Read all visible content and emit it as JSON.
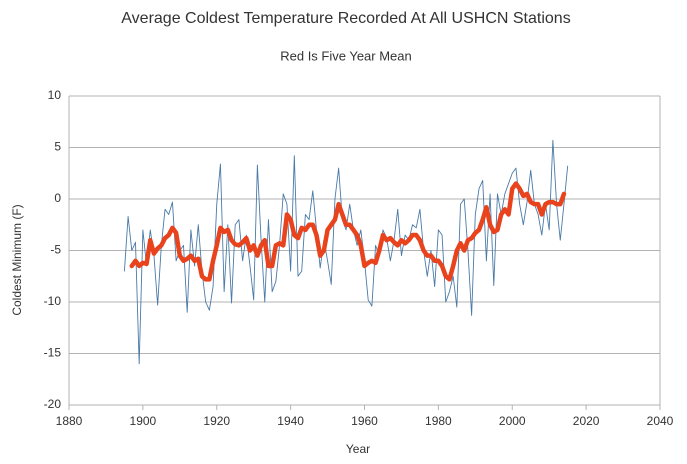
{
  "chart_data": {
    "type": "line",
    "title": "Average Coldest Temperature Recorded At All USHCN  Stations",
    "subtitle": "Red Is Five Year Mean",
    "x_label": "Year",
    "y_label": "Coldest Minimum (F)",
    "x": [
      1895,
      1896,
      1897,
      1898,
      1899,
      1900,
      1901,
      1902,
      1903,
      1904,
      1905,
      1906,
      1907,
      1908,
      1909,
      1910,
      1911,
      1912,
      1913,
      1914,
      1915,
      1916,
      1917,
      1918,
      1919,
      1920,
      1921,
      1922,
      1923,
      1924,
      1925,
      1926,
      1927,
      1928,
      1929,
      1930,
      1931,
      1932,
      1933,
      1934,
      1935,
      1936,
      1937,
      1938,
      1939,
      1940,
      1941,
      1942,
      1943,
      1944,
      1945,
      1946,
      1947,
      1948,
      1949,
      1950,
      1951,
      1952,
      1953,
      1954,
      1955,
      1956,
      1957,
      1958,
      1959,
      1960,
      1961,
      1962,
      1963,
      1964,
      1965,
      1966,
      1967,
      1968,
      1969,
      1970,
      1971,
      1972,
      1973,
      1974,
      1975,
      1976,
      1977,
      1978,
      1979,
      1980,
      1981,
      1982,
      1983,
      1984,
      1985,
      1986,
      1987,
      1988,
      1989,
      1990,
      1991,
      1992,
      1993,
      1994,
      1995,
      1996,
      1997,
      1998,
      1999,
      2000,
      2001,
      2002,
      2003,
      2004,
      2005,
      2006,
      2007,
      2008,
      2009,
      2010,
      2011,
      2012,
      2013,
      2014,
      2015
    ],
    "series": [
      {
        "color": "#4a7aa8",
        "width": 0.9,
        "values": [
          -7,
          -1.7,
          -5,
          -4.2,
          -16,
          -3,
          -6.5,
          -3,
          -5.5,
          -10.3,
          -4.5,
          -1,
          -1.5,
          -0.3,
          -6,
          -5,
          -4.5,
          -11,
          -3,
          -6.5,
          -2.5,
          -7,
          -10,
          -10.8,
          -8.5,
          -0.5,
          3.4,
          -9,
          -2.5,
          -10.1,
          -2.5,
          -2,
          -6,
          -3.5,
          -6.5,
          -9.8,
          3.3,
          -4,
          -10,
          -2,
          -9,
          -8,
          -4.5,
          0.5,
          -0.5,
          -7,
          4.2,
          -7.5,
          -7,
          -1.5,
          -2,
          0.8,
          -3,
          -6.7,
          -4,
          -6,
          -8.3,
          0,
          3,
          -2,
          -3,
          -0.5,
          -3,
          -4.5,
          -3,
          -6,
          -9.8,
          -10.4,
          -4.5,
          -5.5,
          -3,
          -3.8,
          -6,
          -4,
          -1,
          -5.5,
          -3.5,
          -4,
          -2.5,
          -2.8,
          -1,
          -5,
          -7.5,
          -5,
          -8.5,
          -3,
          -3.5,
          -10,
          -9,
          -7.5,
          -10.5,
          -0.5,
          0,
          -5,
          -11.3,
          -1.5,
          1,
          1.8,
          -6,
          0.5,
          -8.4,
          0.5,
          -1.5,
          0.5,
          1.5,
          2.5,
          3,
          -0.5,
          -2.5,
          -0.3,
          2.8,
          -0.5,
          -1.5,
          -3.5,
          -0.5,
          -3,
          5.7,
          -0.5,
          -4,
          -0.5,
          3.2
        ]
      },
      {
        "color": "#e8431c",
        "width": 4.5,
        "values": [
          null,
          null,
          -6.5,
          -6,
          -6.5,
          -6.2,
          -6.3,
          -4,
          -5.3,
          -4.8,
          -4.5,
          -3.8,
          -3.5,
          -2.8,
          -3.3,
          -5.5,
          -6,
          -5.8,
          -5.5,
          -6,
          -5.8,
          -7.5,
          -7.8,
          -7.8,
          -6,
          -4.5,
          -2.8,
          -3.2,
          -3,
          -4,
          -4.4,
          -4.5,
          -4.2,
          -3.8,
          -5,
          -4.5,
          -5.5,
          -4.5,
          -4,
          -6.5,
          -6.5,
          -4.5,
          -4.3,
          -4.5,
          -1.5,
          -2,
          -3.5,
          -3.8,
          -2.8,
          -3,
          -2.5,
          -2.5,
          -3.5,
          -5.5,
          -5,
          -3,
          -2.5,
          -2,
          -0.5,
          -1.5,
          -2.5,
          -2.5,
          -3,
          -3.5,
          -4.5,
          -6.5,
          -6.2,
          -6,
          -6.2,
          -5,
          -3.5,
          -4,
          -3.8,
          -4.2,
          -4.5,
          -4,
          -4.3,
          -4,
          -3.5,
          -3.5,
          -4,
          -5,
          -5.5,
          -5.5,
          -6,
          -6,
          -6.5,
          -7.5,
          -7.8,
          -6.5,
          -5,
          -4.3,
          -5,
          -4,
          -3.8,
          -3.3,
          -3,
          -2,
          -0.8,
          -2.5,
          -3.2,
          -3,
          -1.5,
          -1,
          -1.5,
          1,
          1.5,
          1,
          0.3,
          0.5,
          -0.3,
          -0.5,
          -0.5,
          -1.5,
          -0.5,
          -0.3,
          -0.3,
          -0.5,
          -0.5,
          0.5,
          null
        ]
      }
    ],
    "xlim": [
      1880,
      2040
    ],
    "xticks": [
      1880,
      1900,
      1920,
      1940,
      1960,
      1980,
      2000,
      2020,
      2040
    ],
    "ylim": [
      -20,
      10
    ],
    "yticks": [
      -20,
      -15,
      -10,
      -5,
      0,
      5,
      10
    ],
    "grid": true
  }
}
